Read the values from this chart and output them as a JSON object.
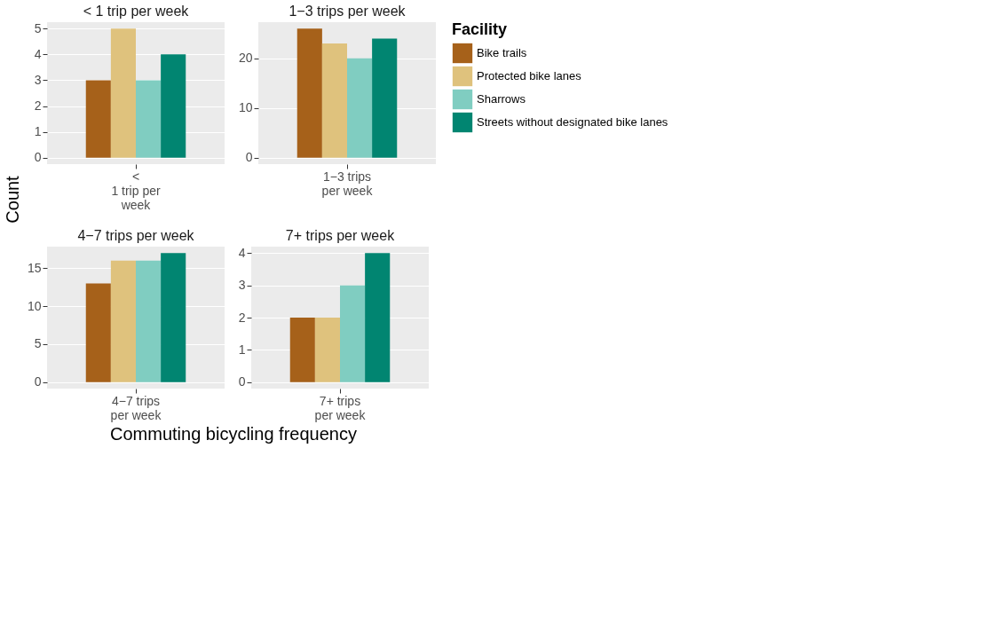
{
  "chart_data": [
    {
      "type": "bar",
      "title": "< 1 trip per week",
      "ylabel": "Count",
      "xlabel": "Commuting  bicycling  frequency",
      "legend_title": "Facility",
      "legend": "right",
      "grid": true,
      "categories": [
        "<\n1 trip per\nweek"
      ],
      "ylim": [
        -0.25,
        5.25
      ],
      "yticks": [
        0,
        1,
        2,
        3,
        4,
        5
      ],
      "series": [
        {
          "name": "Bike trails",
          "color": "#a6611a",
          "values": [
            3
          ]
        },
        {
          "name": "Protected bike lanes",
          "color": "#dfc27d",
          "values": [
            5
          ]
        },
        {
          "name": "Sharrows",
          "color": "#80cdc1",
          "values": [
            3
          ]
        },
        {
          "name": "Streets without designated bike lanes",
          "color": "#018571",
          "values": [
            4
          ]
        }
      ]
    },
    {
      "type": "bar",
      "title": "1−3 trips per week",
      "grid": true,
      "categories": [
        "1−3 trips\nper week"
      ],
      "ylim": [
        -1.3,
        27.3
      ],
      "yticks": [
        0,
        10,
        20
      ],
      "series": [
        {
          "name": "Bike trails",
          "color": "#a6611a",
          "values": [
            26
          ]
        },
        {
          "name": "Protected bike lanes",
          "color": "#dfc27d",
          "values": [
            23
          ]
        },
        {
          "name": "Sharrows",
          "color": "#80cdc1",
          "values": [
            20
          ]
        },
        {
          "name": "Streets without designated bike lanes",
          "color": "#018571",
          "values": [
            24
          ]
        }
      ]
    },
    {
      "type": "bar",
      "title": "4−7 trips per week",
      "grid": true,
      "categories": [
        "4−7 trips\nper week"
      ],
      "ylim": [
        -0.85,
        17.85
      ],
      "yticks": [
        0,
        5,
        10,
        15
      ],
      "series": [
        {
          "name": "Bike trails",
          "color": "#a6611a",
          "values": [
            13
          ]
        },
        {
          "name": "Protected bike lanes",
          "color": "#dfc27d",
          "values": [
            16
          ]
        },
        {
          "name": "Sharrows",
          "color": "#80cdc1",
          "values": [
            16
          ]
        },
        {
          "name": "Streets without designated bike lanes",
          "color": "#018571",
          "values": [
            17
          ]
        }
      ]
    },
    {
      "type": "bar",
      "title": "7+ trips per week",
      "grid": true,
      "categories": [
        "7+ trips\nper week"
      ],
      "ylim": [
        -0.2,
        4.2
      ],
      "yticks": [
        0,
        1,
        2,
        3,
        4
      ],
      "series": [
        {
          "name": "Bike trails",
          "color": "#a6611a",
          "values": [
            2
          ]
        },
        {
          "name": "Protected bike lanes",
          "color": "#dfc27d",
          "values": [
            2
          ]
        },
        {
          "name": "Sharrows",
          "color": "#80cdc1",
          "values": [
            3
          ]
        },
        {
          "name": "Streets without designated bike lanes",
          "color": "#018571",
          "values": [
            4
          ]
        }
      ]
    }
  ]
}
